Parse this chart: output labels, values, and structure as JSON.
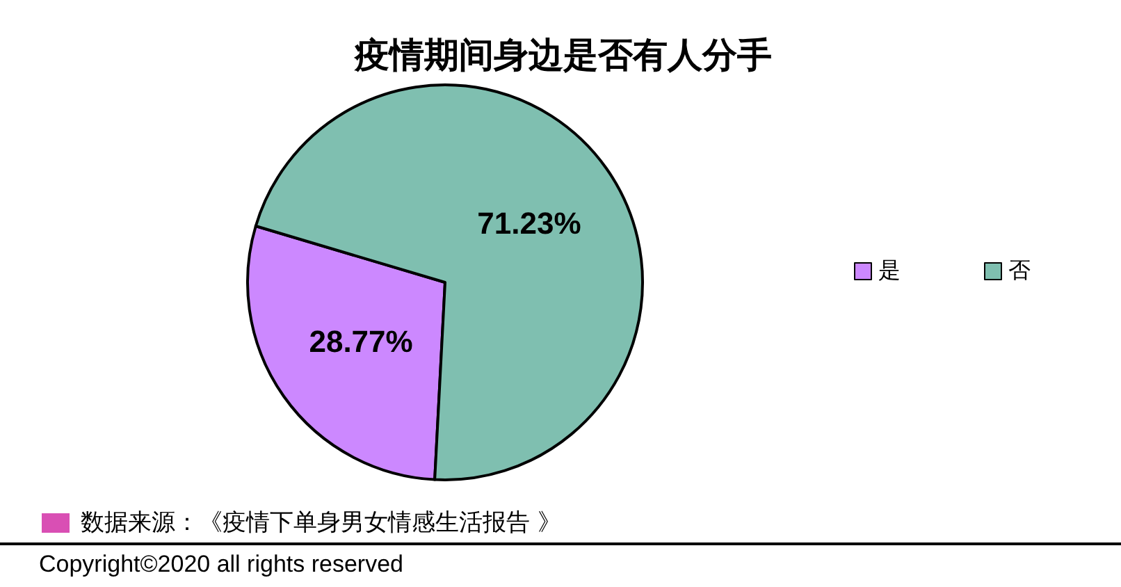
{
  "chart_data": {
    "type": "pie",
    "title": "疫情期间身边是否有人分手",
    "categories": [
      "是",
      "否"
    ],
    "values": [
      28.77,
      71.23
    ],
    "value_labels": [
      "28.77%",
      "71.23%"
    ],
    "colors": [
      "#cc88ff",
      "#7fbfb0"
    ],
    "legend": "right",
    "annotations": [
      "数据来源：《疫情下单身男女情感生活报告 》",
      "Copyright©2020 all rights reserved"
    ]
  }
}
